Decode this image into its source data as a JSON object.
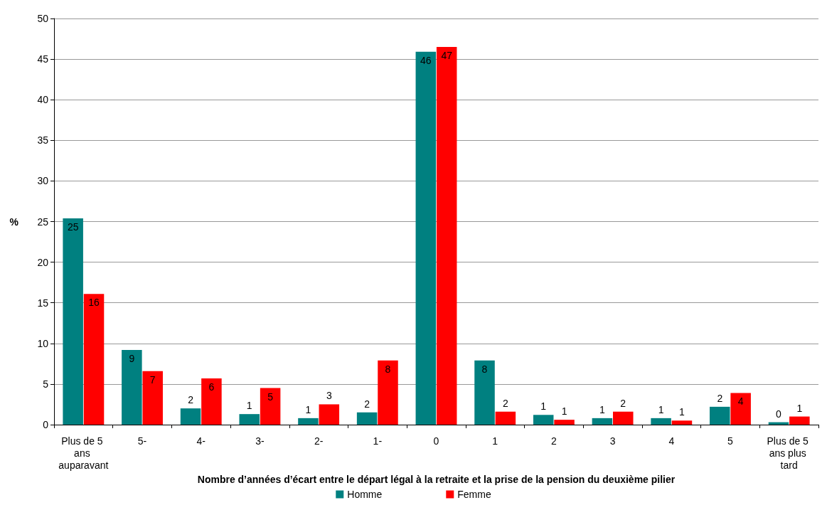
{
  "chart_data": {
    "type": "bar",
    "xlabel": "Nombre d’années d’écart entre le départ légal à la retraite et la prise de la pension du deuxième pilier",
    "ylabel": "%",
    "categories": [
      "Plus de 5 ans auparavant",
      "5-",
      "4-",
      "3-",
      "2-",
      "1-",
      "0",
      "1",
      "2",
      "3",
      "4",
      "5",
      "Plus de 5 ans plus tard"
    ],
    "series": [
      {
        "name": "Homme",
        "color": "#008080",
        "values": [
          25.4,
          9.2,
          2.0,
          1.3,
          0.8,
          1.5,
          45.9,
          7.9,
          1.2,
          0.8,
          0.8,
          2.2,
          0.3
        ],
        "value_labels": [
          "25",
          "9",
          "2",
          "1",
          "1",
          "2",
          "46",
          "8",
          "1",
          "1",
          "1",
          "2",
          "0"
        ]
      },
      {
        "name": "Femme",
        "color": "#ff0000",
        "values": [
          16.1,
          6.6,
          5.7,
          4.5,
          2.5,
          7.9,
          46.5,
          1.6,
          0.6,
          1.6,
          0.5,
          3.9,
          1.0
        ],
        "value_labels": [
          "16",
          "7",
          "6",
          "5",
          "3",
          "8",
          "47",
          "2",
          "1",
          "2",
          "1",
          "4",
          "1"
        ]
      }
    ],
    "ylim": [
      0,
      50
    ],
    "yticks": [
      0,
      5,
      10,
      15,
      20,
      25,
      30,
      35,
      40,
      45,
      50
    ],
    "grid": "y",
    "legend": "bottom"
  }
}
